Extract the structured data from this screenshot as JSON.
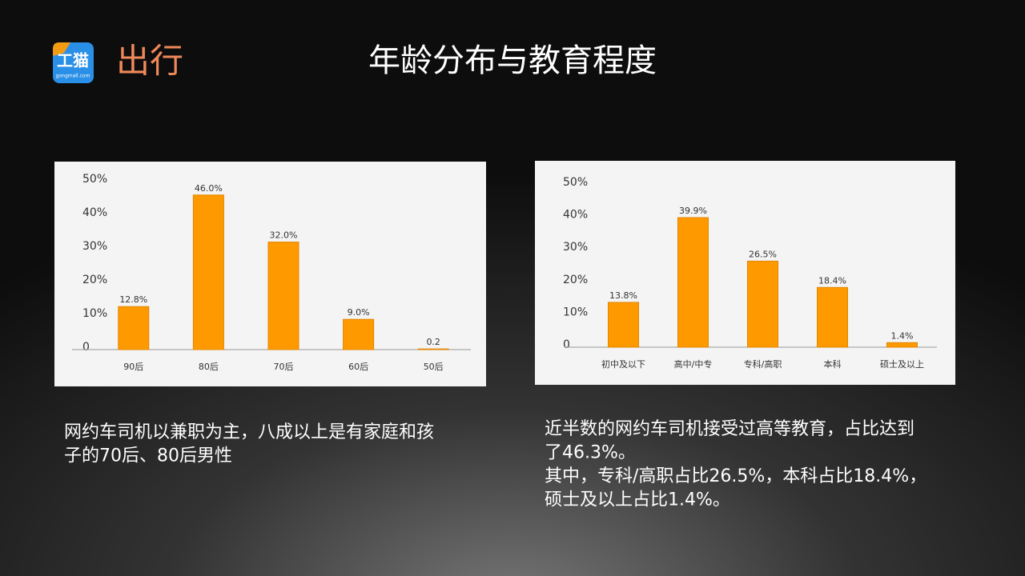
{
  "header": {
    "logo_text": "工猫",
    "logo_sub": "gongmall.com",
    "brand": "出行",
    "title": "年龄分布与教育程度"
  },
  "chart_data": [
    {
      "type": "bar",
      "categories": [
        "90后",
        "80后",
        "70后",
        "60后",
        "50后"
      ],
      "values": [
        12.8,
        46.0,
        32.0,
        9.0,
        0.2
      ],
      "value_labels": [
        "12.8%",
        "46.0%",
        "32.0%",
        "9.0%",
        "0.2"
      ],
      "color": "#ff9900",
      "ylim": [
        0,
        50
      ],
      "yticks": [
        0,
        {
          "value": 10,
          "label": "10%"
        },
        {
          "value": 20,
          "label": "20%"
        },
        {
          "value": 30,
          "label": "30%"
        },
        {
          "value": 40,
          "label": "40%"
        },
        {
          "value": 50,
          "label": "50%"
        }
      ],
      "grid": false
    },
    {
      "type": "bar",
      "categories": [
        "初中及以下",
        "高中/中专",
        "专科/高职",
        "本科",
        "硕士及以上"
      ],
      "values": [
        13.8,
        39.9,
        26.5,
        18.4,
        1.4
      ],
      "value_labels": [
        "13.8%",
        "39.9%",
        "26.5%",
        "18.4%",
        "1.4%"
      ],
      "color": "#ff9900",
      "ylim": [
        0,
        50
      ],
      "yticks": [
        0,
        {
          "value": 10,
          "label": "10%"
        },
        {
          "value": 20,
          "label": "20%"
        },
        {
          "value": 30,
          "label": "30%"
        },
        {
          "value": 40,
          "label": "40%"
        },
        {
          "value": 50,
          "label": "50%"
        }
      ],
      "grid": false
    }
  ],
  "captions": [
    [
      "网约车司机以兼职为主，八成以上是有家庭和孩",
      "子的70后、80后男性"
    ],
    [
      "近半数的网约车司机接受过高等教育，占比达到",
      "了46.3%。",
      "其中，专科/高职占比26.5%，本科占比18.4%，",
      "硕士及以上占比1.4%。"
    ]
  ]
}
